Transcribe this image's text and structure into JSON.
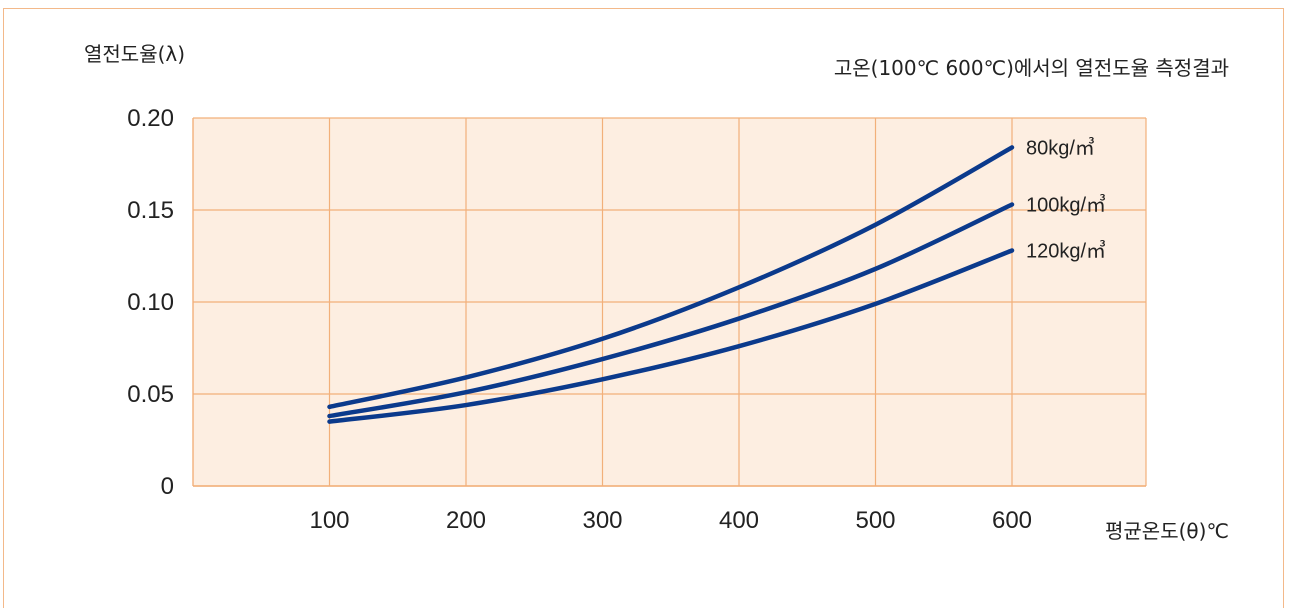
{
  "chart_data": {
    "type": "line",
    "title": "고온(100℃ 600℃)에서의 열전도율 측정결과",
    "ylabel": "열전도율(λ)",
    "xlabel": "평균온도(θ)℃",
    "x_ticks": [
      "100",
      "200",
      "300",
      "400",
      "500",
      "600"
    ],
    "y_ticks": [
      "0",
      "0.05",
      "0.10",
      "0.15",
      "0.20"
    ],
    "xlim": [
      0,
      600
    ],
    "ylim": [
      0,
      0.2
    ],
    "grid": true,
    "colors": {
      "plot_bg": "#fdeee1",
      "grid": "#f2b07a",
      "line": "#0b3a8c",
      "frame": "#f3b98a"
    },
    "series": [
      {
        "name": "80kg/㎥",
        "x": [
          100,
          200,
          300,
          400,
          500,
          600
        ],
        "y": [
          0.043,
          0.059,
          0.08,
          0.108,
          0.142,
          0.184
        ]
      },
      {
        "name": "100kg/㎥",
        "x": [
          100,
          200,
          300,
          400,
          500,
          600
        ],
        "y": [
          0.038,
          0.051,
          0.069,
          0.091,
          0.118,
          0.153
        ]
      },
      {
        "name": "120kg/㎥",
        "x": [
          100,
          200,
          300,
          400,
          500,
          600
        ],
        "y": [
          0.035,
          0.044,
          0.058,
          0.076,
          0.099,
          0.128
        ]
      }
    ]
  }
}
